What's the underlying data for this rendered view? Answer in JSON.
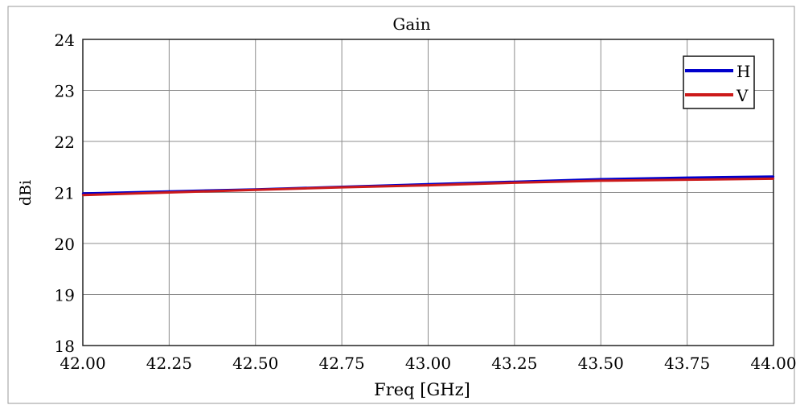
{
  "chart_data": {
    "type": "line",
    "title": "Gain",
    "xlabel": "Freq [GHz]",
    "ylabel": "dBi",
    "xlim": [
      42.0,
      44.0
    ],
    "ylim": [
      18,
      24
    ],
    "xticks": [
      "42.00",
      "42.25",
      "42.50",
      "42.75",
      "43.00",
      "43.25",
      "43.50",
      "43.75",
      "44.00"
    ],
    "yticks": [
      "18",
      "19",
      "20",
      "21",
      "22",
      "23",
      "24"
    ],
    "grid": true,
    "legend_position": "top-right",
    "series": [
      {
        "name": "H",
        "color": "#0000cc",
        "x": [
          42.0,
          42.25,
          42.5,
          42.75,
          43.0,
          43.25,
          43.5,
          43.75,
          44.0
        ],
        "y": [
          20.98,
          21.02,
          21.06,
          21.11,
          21.16,
          21.21,
          21.26,
          21.29,
          21.31
        ]
      },
      {
        "name": "V",
        "color": "#cc1a1a",
        "x": [
          42.0,
          42.25,
          42.5,
          42.75,
          43.0,
          43.25,
          43.5,
          43.75,
          44.0
        ],
        "y": [
          20.95,
          21.0,
          21.05,
          21.1,
          21.14,
          21.19,
          21.23,
          21.25,
          21.27
        ]
      }
    ]
  }
}
